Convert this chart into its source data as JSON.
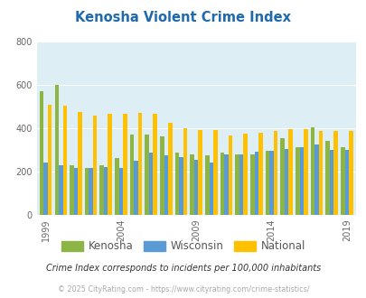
{
  "title": "Kenosha Violent Crime Index",
  "years": [
    1999,
    2000,
    2001,
    2002,
    2003,
    2004,
    2005,
    2006,
    2007,
    2008,
    2009,
    2010,
    2011,
    2012,
    2013,
    2014,
    2015,
    2016,
    2017,
    2018,
    2019
  ],
  "kenosha": [
    570,
    600,
    230,
    215,
    230,
    260,
    370,
    370,
    360,
    285,
    280,
    275,
    285,
    280,
    280,
    295,
    355,
    310,
    405,
    340,
    310
  ],
  "wisconsin": [
    240,
    230,
    215,
    215,
    220,
    215,
    250,
    285,
    275,
    265,
    255,
    240,
    280,
    280,
    290,
    295,
    305,
    310,
    325,
    300,
    300
  ],
  "national": [
    510,
    505,
    475,
    460,
    465,
    465,
    470,
    465,
    425,
    400,
    390,
    390,
    365,
    375,
    380,
    385,
    395,
    395,
    385,
    385,
    385
  ],
  "kenosha_color": "#8db545",
  "wisconsin_color": "#5b9bd5",
  "national_color": "#ffc000",
  "plot_bg": "#ddeef5",
  "ylim": [
    0,
    800
  ],
  "yticks": [
    0,
    200,
    400,
    600,
    800
  ],
  "xtick_years": [
    1999,
    2004,
    2009,
    2014,
    2019
  ],
  "footnote1": "Crime Index corresponds to incidents per 100,000 inhabitants",
  "footnote2": "© 2025 CityRating.com - https://www.cityrating.com/crime-statistics/",
  "title_color": "#1e6aad",
  "footnote1_color": "#333333",
  "footnote2_color": "#aaaaaa",
  "legend_labels": [
    "Kenosha",
    "Wisconsin",
    "National"
  ],
  "legend_label_color": "#555555",
  "bar_width": 0.27
}
